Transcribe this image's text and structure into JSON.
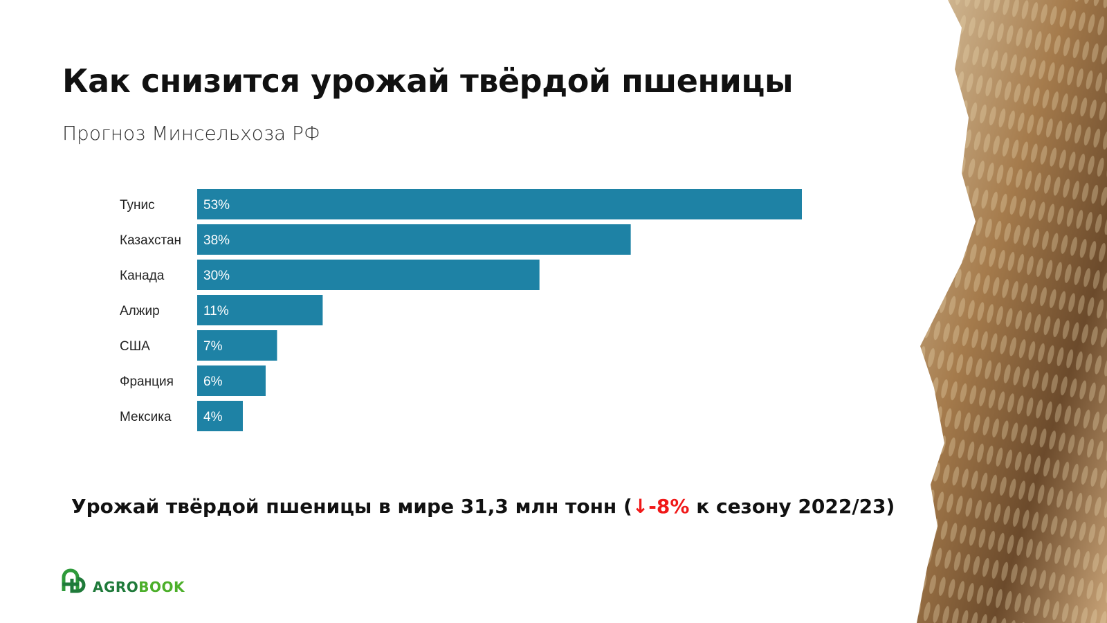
{
  "title": "Как снизится урожай твёрдой пшеницы",
  "subtitle": "Прогноз Минсельхоза РФ",
  "footer": {
    "prefix": "Урожай твёрдой пшеницы в мире 31,3 млн тонн (",
    "arrow": "↓",
    "change": "-8%",
    "suffix": " к сезону 2022/23)"
  },
  "logo": {
    "part1": "AGRO",
    "part2": "BOOK"
  },
  "colors": {
    "bar": "#1e82a5",
    "accent": "#f01818",
    "logo": "#1f7a3a"
  },
  "chart_data": {
    "type": "bar",
    "orientation": "horizontal",
    "categories": [
      "Тунис",
      "Казахстан",
      "Канада",
      "Алжир",
      "США",
      "Франция",
      "Мексика"
    ],
    "values": [
      53,
      38,
      30,
      11,
      7,
      6,
      4
    ],
    "labels": [
      "53%",
      "38%",
      "30%",
      "11%",
      "7%",
      "6%",
      "4%"
    ],
    "unit": "%",
    "xlim": [
      0,
      53
    ],
    "grid": false
  }
}
